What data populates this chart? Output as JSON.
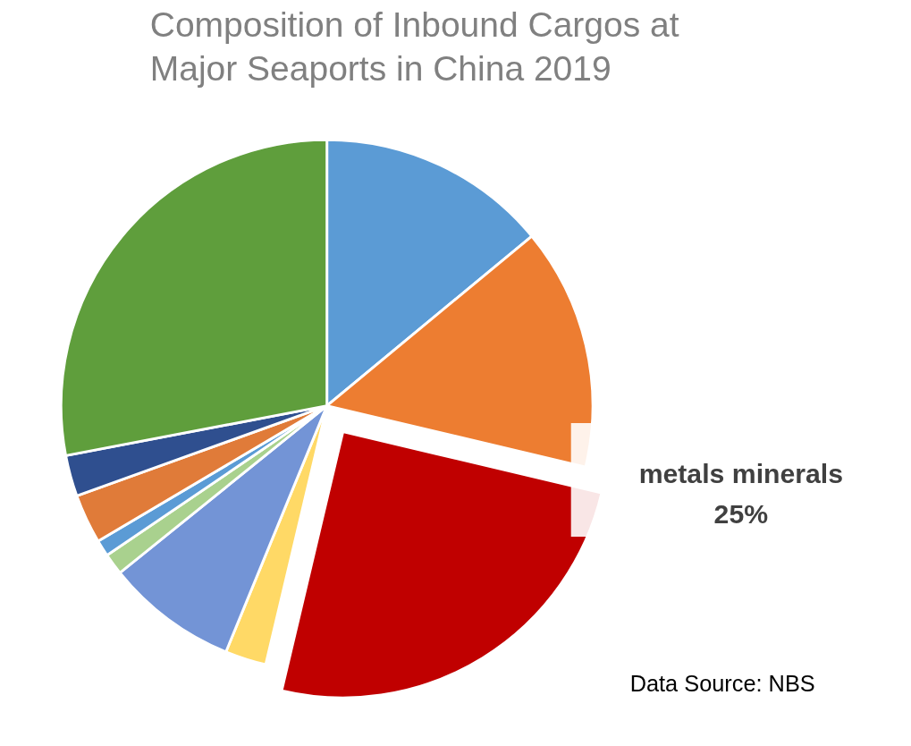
{
  "chart_data": {
    "type": "pie",
    "title": "Composition of Inbound Cargos at Major Seaports in China 2019",
    "categories": [
      null,
      null,
      "metals minerals",
      null,
      null,
      null,
      null,
      null,
      null,
      null
    ],
    "values": [
      14,
      14.7,
      25,
      2.5,
      8,
      1.3,
      1,
      3,
      2.5,
      28
    ],
    "value_labels": [
      null,
      null,
      "25%",
      null,
      null,
      null,
      null,
      null,
      null,
      null
    ],
    "colors": [
      "#5b9bd5",
      "#ed7d31",
      "#c00000",
      "#ffd966",
      "#7394d6",
      "#a9d18e",
      "#5b9bd5",
      "#e07b39",
      "#2f4f8f",
      "#5f9e3c"
    ],
    "annotations": [
      "Data Source: NBS"
    ]
  }
}
